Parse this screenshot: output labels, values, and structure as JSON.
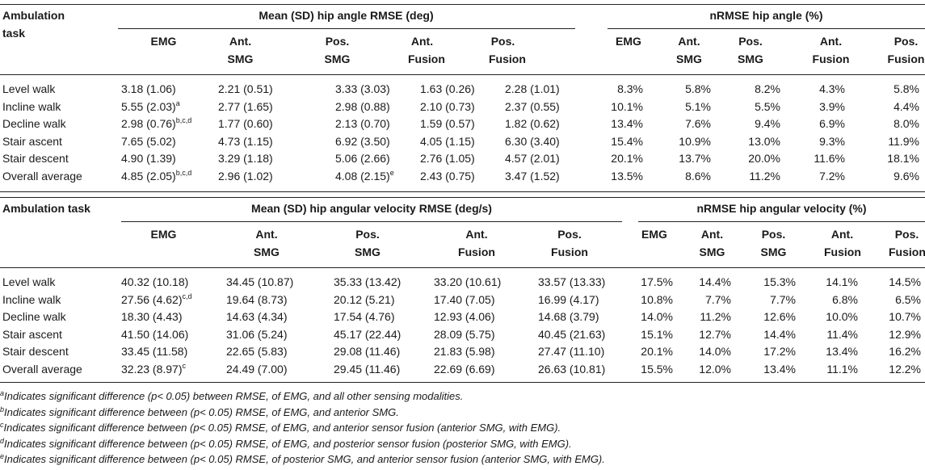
{
  "table1": {
    "task_header_lines": [
      "Ambulation",
      "task"
    ],
    "group_left": "Mean (SD) hip angle RMSE (deg)",
    "group_right": "nRMSE hip angle (%)",
    "cols_left": [
      [
        "EMG"
      ],
      [
        "Ant.",
        "SMG"
      ],
      [
        "Pos.",
        "SMG"
      ],
      [
        "Ant.",
        "Fusion"
      ],
      [
        "Pos.",
        "Fusion"
      ]
    ],
    "cols_right": [
      [
        "EMG"
      ],
      [
        "Ant.",
        "SMG"
      ],
      [
        "Pos.",
        "SMG"
      ],
      [
        "Ant.",
        "Fusion"
      ],
      [
        "Pos.",
        "Fusion"
      ]
    ],
    "rows": [
      {
        "task": "Level walk",
        "cells": [
          "3.18 (1.06)",
          "2.21 (0.51)",
          "3.33 (3.03)",
          "1.63 (0.26)",
          "2.28 (1.01)"
        ],
        "sups": [
          "",
          "",
          "",
          "",
          ""
        ],
        "pct": [
          "8.3%",
          "5.8%",
          "8.2%",
          "4.3%",
          "5.8%"
        ]
      },
      {
        "task": "Incline walk",
        "cells": [
          "5.55 (2.03)",
          "2.77 (1.65)",
          "2.98 (0.88)",
          "2.10 (0.73)",
          "2.37 (0.55)"
        ],
        "sups": [
          "a",
          "",
          "",
          "",
          ""
        ],
        "pct": [
          "10.1%",
          "5.1%",
          "5.5%",
          "3.9%",
          "4.4%"
        ]
      },
      {
        "task": "Decline walk",
        "cells": [
          "2.98 (0.76)",
          "1.77 (0.60)",
          "2.13 (0.70)",
          "1.59 (0.57)",
          "1.82 (0.62)"
        ],
        "sups": [
          "b,c,d",
          "",
          "",
          "",
          ""
        ],
        "pct": [
          "13.4%",
          "7.6%",
          "9.4%",
          "6.9%",
          "8.0%"
        ]
      },
      {
        "task": "Stair ascent",
        "cells": [
          "7.65 (5.02)",
          "4.73 (1.15)",
          "6.92 (3.50)",
          "4.05 (1.15)",
          "6.30 (3.40)"
        ],
        "sups": [
          "",
          "",
          "",
          "",
          ""
        ],
        "pct": [
          "15.4%",
          "10.9%",
          "13.0%",
          "9.3%",
          "11.9%"
        ]
      },
      {
        "task": "Stair descent",
        "cells": [
          "4.90 (1.39)",
          "3.29 (1.18)",
          "5.06 (2.66)",
          "2.76 (1.05)",
          "4.57 (2.01)"
        ],
        "sups": [
          "",
          "",
          "",
          "",
          ""
        ],
        "pct": [
          "20.1%",
          "13.7%",
          "20.0%",
          "11.6%",
          "18.1%"
        ]
      },
      {
        "task": "Overall average",
        "cells": [
          "4.85 (2.05)",
          "2.96 (1.02)",
          "4.08 (2.15)",
          "2.43 (0.75)",
          "3.47 (1.52)"
        ],
        "sups": [
          "b,c,d",
          "",
          "e",
          "",
          ""
        ],
        "pct": [
          "13.5%",
          "8.6%",
          "11.2%",
          "7.2%",
          "9.6%"
        ]
      }
    ]
  },
  "table2": {
    "task_header_lines": [
      "Ambulation task"
    ],
    "group_left": "Mean (SD) hip angular velocity RMSE (deg/s)",
    "group_right": "nRMSE hip angular velocity (%)",
    "cols_left": [
      [
        "EMG"
      ],
      [
        "Ant.",
        "SMG"
      ],
      [
        "Pos.",
        "SMG"
      ],
      [
        "Ant.",
        "Fusion"
      ],
      [
        "Pos.",
        "Fusion"
      ]
    ],
    "cols_right": [
      [
        "EMG"
      ],
      [
        "Ant.",
        "SMG"
      ],
      [
        "Pos.",
        "SMG"
      ],
      [
        "Ant.",
        "Fusion"
      ],
      [
        "Pos.",
        "Fusion"
      ]
    ],
    "rows": [
      {
        "task": "Level walk",
        "cells": [
          "40.32 (10.18)",
          "34.45 (10.87)",
          "35.33 (13.42)",
          "33.20 (10.61)",
          "33.57 (13.33)"
        ],
        "sups": [
          "",
          "",
          "",
          "",
          ""
        ],
        "pct": [
          "17.5%",
          "14.4%",
          "15.3%",
          "14.1%",
          "14.5%"
        ]
      },
      {
        "task": "Incline walk",
        "cells": [
          "27.56 (4.62)",
          "19.64 (8.73)",
          "20.12 (5.21)",
          "17.40 (7.05)",
          "16.99 (4.17)"
        ],
        "sups": [
          "c,d",
          "",
          "",
          "",
          ""
        ],
        "pct": [
          "10.8%",
          "7.7%",
          "7.7%",
          "6.8%",
          "6.5%"
        ]
      },
      {
        "task": "Decline walk",
        "cells": [
          "18.30 (4.43)",
          "14.63 (4.34)",
          "17.54 (4.76)",
          "12.93 (4.06)",
          "14.68 (3.79)"
        ],
        "sups": [
          "",
          "",
          "",
          "",
          ""
        ],
        "pct": [
          "14.0%",
          "11.2%",
          "12.6%",
          "10.0%",
          "10.7%"
        ]
      },
      {
        "task": "Stair ascent",
        "cells": [
          "41.50 (14.06)",
          "31.06 (5.24)",
          "45.17 (22.44)",
          "28.09 (5.75)",
          "40.45 (21.63)"
        ],
        "sups": [
          "",
          "",
          "",
          "",
          ""
        ],
        "pct": [
          "15.1%",
          "12.7%",
          "14.4%",
          "11.4%",
          "12.9%"
        ]
      },
      {
        "task": "Stair descent",
        "cells": [
          "33.45 (11.58)",
          "22.65 (5.83)",
          "29.08 (11.46)",
          "21.83 (5.98)",
          "27.47 (11.10)"
        ],
        "sups": [
          "",
          "",
          "",
          "",
          ""
        ],
        "pct": [
          "20.1%",
          "14.0%",
          "17.2%",
          "13.4%",
          "16.2%"
        ]
      },
      {
        "task": "Overall average",
        "cells": [
          "32.23 (8.97)",
          "24.49 (7.00)",
          "29.45 (11.46)",
          "22.69 (6.69)",
          "26.63 (10.81)"
        ],
        "sups": [
          "c",
          "",
          "",
          "",
          ""
        ],
        "pct": [
          "15.5%",
          "12.0%",
          "13.4%",
          "11.1%",
          "12.2%"
        ]
      }
    ]
  },
  "footnotes": [
    {
      "mark": "a",
      "text": "Indicates significant difference (p< 0.05) between RMSE, of EMG, and all other sensing modalities."
    },
    {
      "mark": "b",
      "text": "Indicates significant difference between (p< 0.05) RMSE, of EMG, and anterior SMG."
    },
    {
      "mark": "c",
      "text": "Indicates significant difference between (p< 0.05) RMSE, of EMG, and anterior sensor fusion (anterior SMG, with EMG)."
    },
    {
      "mark": "d",
      "text": "Indicates significant difference between (p< 0.05) RMSE, of EMG, and posterior sensor fusion (posterior SMG, with EMG)."
    },
    {
      "mark": "e",
      "text": "Indicates significant difference between (p< 0.05) RMSE, of posterior SMG, and anterior sensor fusion (anterior SMG, with EMG)."
    }
  ]
}
